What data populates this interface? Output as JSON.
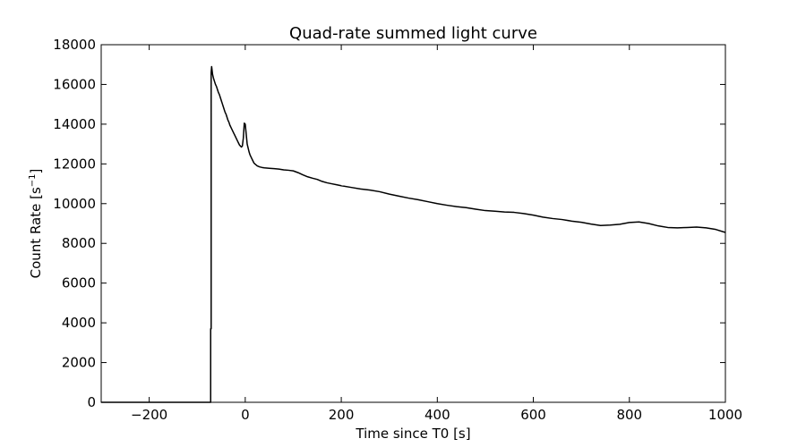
{
  "chart_data": {
    "type": "line",
    "title": "Quad-rate summed light curve",
    "xlabel": "Time since T0 [s]",
    "ylabel_main": "Count Rate [s",
    "ylabel_sup": "−1",
    "ylabel_end": "]",
    "xlim": [
      -300,
      1000
    ],
    "ylim": [
      0,
      18000
    ],
    "xticks": [
      -200,
      0,
      200,
      400,
      600,
      800,
      1000
    ],
    "xtick_labels": [
      "−200",
      "0",
      "200",
      "400",
      "600",
      "800",
      "1000"
    ],
    "yticks": [
      0,
      2000,
      4000,
      6000,
      8000,
      10000,
      12000,
      14000,
      16000,
      18000
    ],
    "ytick_labels": [
      "0",
      "2000",
      "4000",
      "6000",
      "8000",
      "10000",
      "12000",
      "14000",
      "16000",
      "18000"
    ],
    "grid": false,
    "series": [
      {
        "x": [
          -300,
          -72,
          -72,
          -71,
          -71,
          -70,
          -69,
          -68,
          -66,
          -64,
          -62,
          -60,
          -58,
          -56,
          -54,
          -52,
          -50,
          -48,
          -46,
          -44,
          -42,
          -40,
          -38,
          -36,
          -34,
          -32,
          -30,
          -28,
          -26,
          -24,
          -22,
          -20,
          -18,
          -16,
          -14,
          -12,
          -10,
          -8,
          -6,
          -4,
          -2,
          0,
          2,
          4,
          6,
          8,
          10,
          12,
          14,
          16,
          18,
          20,
          25,
          30,
          35,
          40,
          50,
          60,
          70,
          80,
          90,
          100,
          110,
          120,
          130,
          140,
          150,
          160,
          170,
          180,
          190,
          200,
          220,
          240,
          260,
          280,
          300,
          320,
          340,
          360,
          380,
          400,
          420,
          440,
          460,
          480,
          500,
          520,
          540,
          560,
          580,
          600,
          620,
          640,
          660,
          680,
          700,
          720,
          740,
          760,
          780,
          800,
          820,
          840,
          860,
          880,
          900,
          920,
          940,
          960,
          980,
          1000
        ],
        "y": [
          0,
          0,
          3700,
          3700,
          16600,
          16900,
          16700,
          16500,
          16300,
          16150,
          16000,
          15900,
          15750,
          15600,
          15500,
          15350,
          15200,
          15050,
          14900,
          14750,
          14600,
          14500,
          14350,
          14200,
          14100,
          13950,
          13850,
          13750,
          13650,
          13550,
          13450,
          13350,
          13250,
          13150,
          13050,
          12950,
          12900,
          12850,
          12900,
          13300,
          14050,
          14000,
          13500,
          13000,
          12800,
          12600,
          12450,
          12350,
          12250,
          12150,
          12050,
          12000,
          11900,
          11850,
          11820,
          11800,
          11780,
          11760,
          11740,
          11700,
          11680,
          11650,
          11560,
          11450,
          11350,
          11280,
          11220,
          11120,
          11050,
          11000,
          10950,
          10900,
          10820,
          10740,
          10680,
          10600,
          10480,
          10380,
          10280,
          10200,
          10100,
          10000,
          9920,
          9850,
          9800,
          9720,
          9650,
          9620,
          9580,
          9560,
          9500,
          9420,
          9320,
          9250,
          9200,
          9120,
          9060,
          8970,
          8900,
          8920,
          8960,
          9050,
          9080,
          9000,
          8880,
          8800,
          8780,
          8800,
          8820,
          8780,
          8700,
          8550
        ]
      }
    ]
  }
}
